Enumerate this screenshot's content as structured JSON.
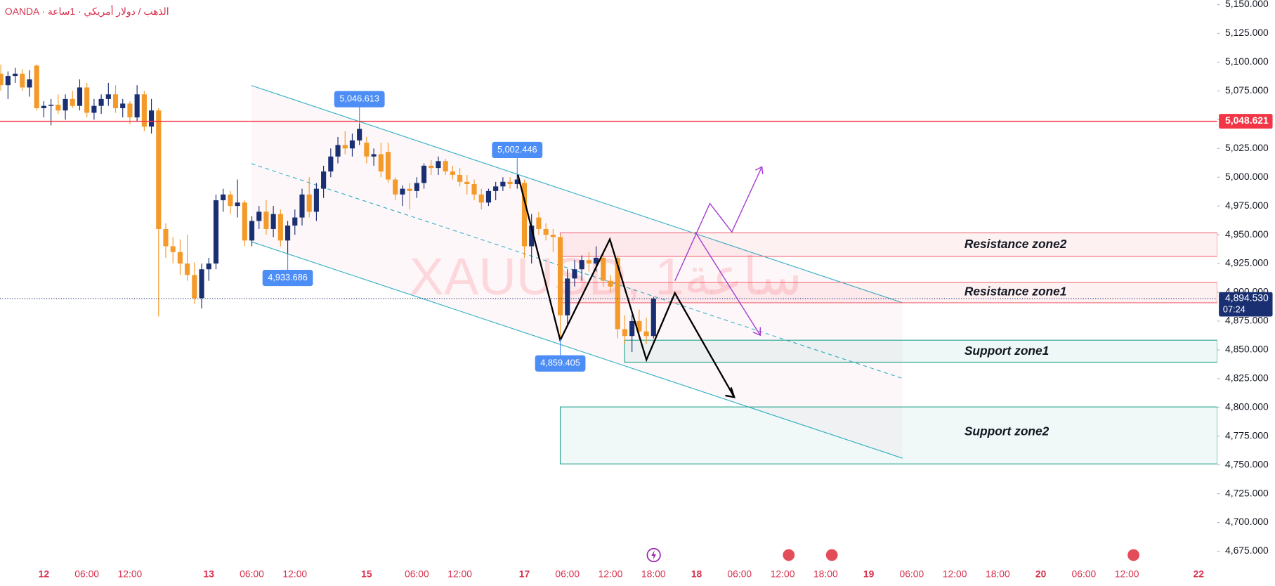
{
  "chart_data": {
    "type": "candlestick",
    "source": "OANDA · الذهب / دولار أمريكي · 1ساعة",
    "watermark": "XAUUSD, 1ساعة",
    "up_color": "#1a2f72",
    "down_color": "#f39a2b",
    "x": [
      0,
      1,
      2,
      3,
      4,
      5,
      6,
      7,
      8,
      9,
      10,
      11,
      12,
      13,
      14,
      15,
      16,
      17,
      18,
      19,
      20,
      21,
      22,
      23,
      24,
      25,
      26,
      27,
      28,
      29,
      30,
      31,
      32,
      33,
      34,
      35,
      36,
      37,
      38,
      39,
      40,
      41,
      42,
      43,
      44,
      45,
      46,
      47,
      48,
      49,
      50,
      51,
      52,
      53,
      54,
      55,
      56,
      57,
      58,
      59,
      60,
      61,
      62,
      63,
      64,
      65,
      66,
      67,
      68,
      69,
      70,
      71,
      72,
      73,
      74,
      75,
      76,
      77,
      78,
      79,
      80,
      81,
      82,
      83,
      84,
      85,
      86,
      87,
      88,
      89,
      90,
      91
    ],
    "open": [
      5090,
      5080,
      5088,
      5090,
      5078,
      5097,
      5060,
      5062,
      5063,
      5058,
      5068,
      5062,
      5078,
      5056,
      5062,
      5068,
      5072,
      5060,
      5064,
      5052,
      5072,
      5044,
      5058,
      4955,
      4940,
      4935,
      4925,
      4915,
      4895,
      4920,
      4925,
      4980,
      4985,
      4975,
      4978,
      4945,
      4962,
      4970,
      4955,
      4968,
      4945,
      4958,
      4965,
      4985,
      4970,
      4990,
      5005,
      5018,
      5028,
      5025,
      5032,
      5030,
      5018,
      5020,
      5022,
      4998,
      4985,
      4990,
      4988,
      4995,
      5010,
      5008,
      5014,
      5005,
      5002,
      4996,
      4994,
      4985,
      4978,
      4988,
      4992,
      4996,
      4994,
      4995,
      4940,
      4965,
      4955,
      4950,
      4948,
      4880,
      4912,
      4920,
      4928,
      4925,
      4930,
      4910,
      4930,
      4868,
      4862,
      4875,
      4866,
      4862
    ],
    "high": [
      5098,
      5092,
      5095,
      5094,
      5093,
      5098,
      5066,
      5068,
      5072,
      5072,
      5075,
      5085,
      5082,
      5068,
      5072,
      5082,
      5080,
      5068,
      5066,
      5080,
      5075,
      5068,
      5060,
      4960,
      4948,
      4946,
      4950,
      4926,
      4925,
      4930,
      4985,
      4990,
      4988,
      4998,
      4980,
      4966,
      4975,
      4980,
      4975,
      4972,
      4962,
      4972,
      4990,
      5000,
      4995,
      5010,
      5025,
      5035,
      5040,
      5038,
      5046.613,
      5035,
      5025,
      5030,
      5030,
      5000,
      4993,
      4995,
      5000,
      5012,
      5015,
      5018,
      5016,
      5010,
      5008,
      5002,
      4998,
      4990,
      4990,
      4996,
      5000,
      5000,
      5002.446,
      4998,
      4968,
      4970,
      4960,
      4955,
      4950,
      4920,
      4928,
      4932,
      4935,
      4940,
      4935,
      4915,
      4932,
      4880,
      4880,
      4885,
      4878,
      4896
    ],
    "low": [
      5075,
      5068,
      5082,
      5075,
      5070,
      5058,
      5052,
      5045,
      5055,
      5050,
      5060,
      5058,
      5052,
      5050,
      5055,
      5062,
      5056,
      5052,
      5046,
      5048,
      5040,
      5038,
      4879,
      4930,
      4925,
      4915,
      4910,
      4890,
      4886,
      4910,
      4920,
      4970,
      4968,
      4965,
      4940,
      4940,
      4955,
      4950,
      4948,
      4940,
      4933.686,
      4950,
      4958,
      4965,
      4962,
      4982,
      5000,
      5012,
      5020,
      5018,
      5028,
      5012,
      5010,
      5000,
      4995,
      4980,
      4975,
      4972,
      4982,
      4990,
      5002,
      5002,
      5002,
      4998,
      4992,
      4985,
      4980,
      4972,
      4975,
      4980,
      4988,
      4990,
      4990,
      4930,
      4925,
      4950,
      4945,
      4935,
      4859.405,
      4870,
      4905,
      4910,
      4918,
      4918,
      4905,
      4900,
      4860,
      4855,
      4848,
      4860,
      4855,
      4860
    ],
    "close": [
      5080,
      5088,
      5090,
      5078,
      5085,
      5060,
      5062,
      5063,
      5058,
      5068,
      5062,
      5078,
      5056,
      5062,
      5068,
      5072,
      5060,
      5064,
      5052,
      5072,
      5044,
      5058,
      4955,
      4940,
      4935,
      4925,
      4915,
      4895,
      4920,
      4925,
      4980,
      4985,
      4975,
      4978,
      4945,
      4962,
      4970,
      4955,
      4968,
      4945,
      4958,
      4965,
      4985,
      4970,
      4990,
      5005,
      5018,
      5028,
      5025,
      5032,
      5042,
      5018,
      5020,
      5005,
      4998,
      4985,
      4990,
      4988,
      4995,
      5010,
      5008,
      5014,
      5005,
      5002,
      4996,
      4994,
      4985,
      4978,
      4988,
      4992,
      4996,
      4994,
      4998,
      4940,
      4958,
      4955,
      4950,
      4948,
      4880,
      4912,
      4920,
      4928,
      4925,
      4930,
      4910,
      4905,
      4868,
      4862,
      4875,
      4866,
      4862,
      4894.53
    ],
    "xlim": [
      -0.113,
      169.6
    ],
    "ylim": [
      4666,
      5154
    ],
    "xticks": [
      {
        "value": 6,
        "label": "12"
      },
      {
        "value": 12,
        "label": "06:00"
      },
      {
        "value": 18,
        "label": "12:00"
      },
      {
        "value": 29,
        "label": "13"
      },
      {
        "value": 35,
        "label": "06:00"
      },
      {
        "value": 41,
        "label": "12:00"
      },
      {
        "value": 51,
        "label": "15"
      },
      {
        "value": 58,
        "label": "06:00"
      },
      {
        "value": 64,
        "label": "12:00"
      },
      {
        "value": 73,
        "label": "17"
      },
      {
        "value": 79,
        "label": "06:00"
      },
      {
        "value": 85,
        "label": "12:00"
      },
      {
        "value": 91,
        "label": "18:00"
      },
      {
        "value": 97,
        "label": "18"
      },
      {
        "value": 103,
        "label": "06:00"
      },
      {
        "value": 109,
        "label": "12:00"
      },
      {
        "value": 115,
        "label": "18:00"
      },
      {
        "value": 121,
        "label": "19"
      },
      {
        "value": 127,
        "label": "06:00"
      },
      {
        "value": 133,
        "label": "12:00"
      },
      {
        "value": 139,
        "label": "18:00"
      },
      {
        "value": 145,
        "label": "20"
      },
      {
        "value": 151,
        "label": "06:00"
      },
      {
        "value": 157,
        "label": "12:00"
      },
      {
        "value": 167,
        "label": "22"
      }
    ],
    "yticks": [
      {
        "value": 4675,
        "label": "4,675.000"
      },
      {
        "value": 4700,
        "label": "4,700.000"
      },
      {
        "value": 4725,
        "label": "4,725.000"
      },
      {
        "value": 4750,
        "label": "4,750.000"
      },
      {
        "value": 4775,
        "label": "4,775.000"
      },
      {
        "value": 4800,
        "label": "4,800.000"
      },
      {
        "value": 4825,
        "label": "4,825.000"
      },
      {
        "value": 4850,
        "label": "4,850.000"
      },
      {
        "value": 4875,
        "label": "4,875.000"
      },
      {
        "value": 4900,
        "label": "4,900.000"
      },
      {
        "value": 4925,
        "label": "4,925.000"
      },
      {
        "value": 4950,
        "label": "4,950.000"
      },
      {
        "value": 4975,
        "label": "4,975.000"
      },
      {
        "value": 5000,
        "label": "5,000.000"
      },
      {
        "value": 5025,
        "label": "5,025.000"
      },
      {
        "value": 5050,
        "label": "5,050.000"
      },
      {
        "value": 5075,
        "label": "5,075.000"
      },
      {
        "value": 5100,
        "label": "5,100.000"
      },
      {
        "value": 5125,
        "label": "5,125.000"
      },
      {
        "value": 5150,
        "label": "5,150.000"
      }
    ],
    "price_line": {
      "value": 5048.621,
      "label": "5,048.621",
      "color": "#f23645"
    },
    "last_price": {
      "value": 4894.53,
      "label": "4,894.530",
      "countdown": "07:24",
      "color": "#1a2f72"
    },
    "annotations": [
      {
        "value": 5046.613,
        "label": "5,046.613",
        "x": 50
      },
      {
        "value": 5002.446,
        "label": "5,002.446",
        "x": 72
      },
      {
        "value": 4933.686,
        "label": "4,933.686",
        "x": 40
      },
      {
        "value": 4859.405,
        "label": "4,859.405",
        "x": 78
      }
    ],
    "zone_labels": [
      "Resistance zone2",
      "Resistance zone1",
      "Support zone1",
      "Support zone2"
    ]
  }
}
